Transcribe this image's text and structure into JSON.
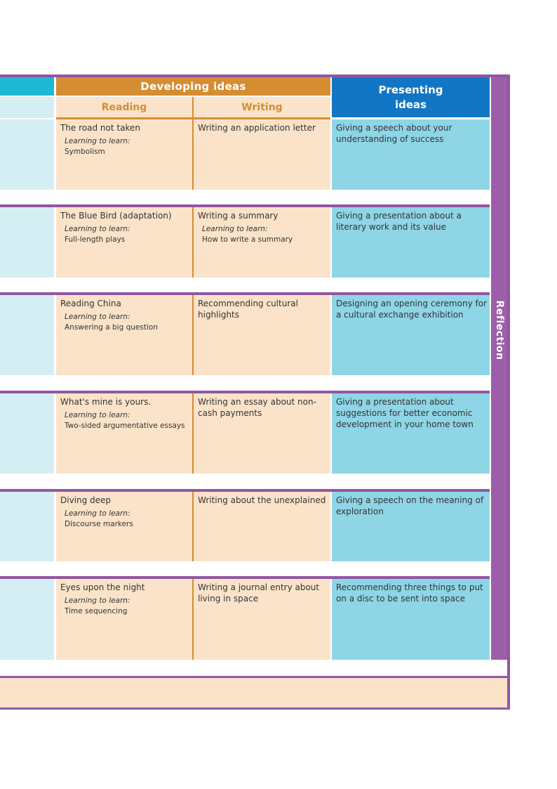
{
  "header": {
    "developing_ideas": "Developing ideas",
    "reading": "Reading",
    "writing": "Writing",
    "presenting_ideas": "Presenting ideas"
  },
  "sidebar": {
    "label": "Reflection"
  },
  "units": [
    {
      "reading_title": "The road not taken",
      "reading_ltl_label": "Learning to learn:",
      "reading_ltl": "Symbolism",
      "writing_title": "Writing an application letter",
      "presenting": "Giving a speech about your understanding of success"
    },
    {
      "reading_title": "The Blue Bird (adaptation)",
      "reading_ltl_label": "Learning to learn:",
      "reading_ltl": "Full-length plays",
      "writing_title": "Writing a summary",
      "writing_ltl_label": "Learning to learn:",
      "writing_ltl": "How to write a summary",
      "presenting": "Giving a presentation about a literary work and its value"
    },
    {
      "reading_title": "Reading China",
      "reading_ltl_label": "Learning to learn:",
      "reading_ltl": "Answering a big question",
      "writing_title": "Recommending cultural highlights",
      "presenting": "Designing an opening ceremony for a cultural exchange exhibition"
    },
    {
      "reading_title": "What's mine is yours.",
      "reading_ltl_label": "Learning to learn:",
      "reading_ltl": "Two-sided argumentative essays",
      "writing_title": "Writing an essay about non-cash payments",
      "presenting": "Giving a presentation about suggestions for better economic development in your home town"
    },
    {
      "reading_title": "Diving deep",
      "reading_ltl_label": "Learning to learn:",
      "reading_ltl": "Discourse markers",
      "writing_title": "Writing about the unexplained",
      "presenting": "Giving a speech on the meaning of exploration"
    },
    {
      "reading_title": "Eyes upon the night",
      "reading_ltl_label": "Learning to learn:",
      "reading_ltl": "Time sequencing",
      "writing_title": "Writing a journal entry about living in space",
      "presenting": "Recommending three things to put on a disc to be sent into space"
    }
  ]
}
